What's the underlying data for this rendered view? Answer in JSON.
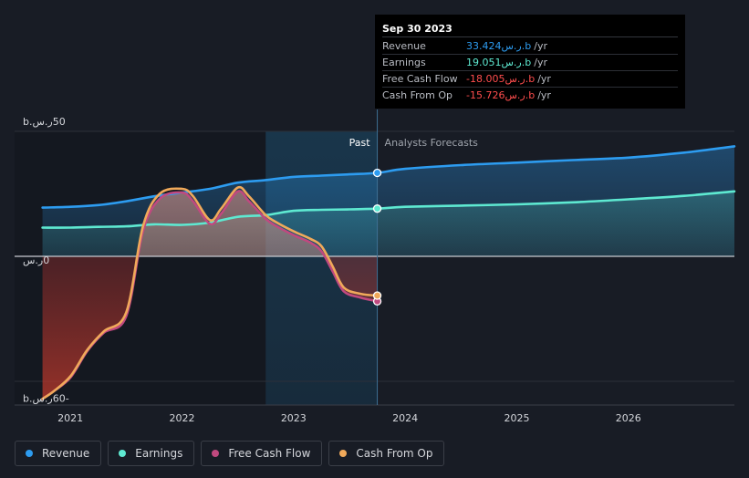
{
  "tooltip": {
    "date": "Sep 30 2023",
    "rows": [
      {
        "label": "Revenue",
        "value": "33.424ر.س.b",
        "unit": "/yr",
        "color": "#2d9cf0"
      },
      {
        "label": "Earnings",
        "value": "19.051ر.س.b",
        "unit": "/yr",
        "color": "#5ee9d1"
      },
      {
        "label": "Free Cash Flow",
        "value": "-18.005ر.س.b",
        "unit": "/yr",
        "color": "#ff4d4d"
      },
      {
        "label": "Cash From Op",
        "value": "-15.726ر.س.b",
        "unit": "/yr",
        "color": "#ff4d4d"
      }
    ]
  },
  "legend": [
    {
      "label": "Revenue",
      "color": "#2d9cf0"
    },
    {
      "label": "Earnings",
      "color": "#5ee9d1"
    },
    {
      "label": "Free Cash Flow",
      "color": "#c0497f"
    },
    {
      "label": "Cash From Op",
      "color": "#f0a95a"
    }
  ],
  "chart_data": {
    "type": "line",
    "title": "",
    "section_labels": {
      "past": "Past",
      "forecast": "Analysts Forecasts"
    },
    "y_tick_labels": [
      {
        "value": 50,
        "label": "50ر.س.b"
      },
      {
        "value": 0,
        "label": "0ر.س"
      },
      {
        "value": -60,
        "label": "-60ر.س.b"
      }
    ],
    "ylim": [
      -60,
      50
    ],
    "xlim": [
      2020.5,
      2026.95
    ],
    "x_ticks": [
      2021,
      2022,
      2023,
      2024,
      2025,
      2026
    ],
    "x_tick_labels": [
      "2021",
      "2022",
      "2023",
      "2024",
      "2025",
      "2026"
    ],
    "past_end": 2023.75,
    "highlight_start": 2022.75,
    "series": [
      {
        "name": "Revenue",
        "color": "#2d9cf0",
        "x": [
          2020.75,
          2021.0,
          2021.25,
          2021.5,
          2021.75,
          2022.0,
          2022.25,
          2022.5,
          2022.75,
          2023.0,
          2023.25,
          2023.5,
          2023.75,
          2024.0,
          2024.5,
          2025.0,
          2025.5,
          2026.0,
          2026.5,
          2026.95
        ],
        "y": [
          19.5,
          19.8,
          20.5,
          22.0,
          24.0,
          25.5,
          27.0,
          29.5,
          30.5,
          31.8,
          32.3,
          32.8,
          33.4,
          35.0,
          36.5,
          37.5,
          38.5,
          39.5,
          41.5,
          44.0
        ]
      },
      {
        "name": "Earnings",
        "color": "#5ee9d1",
        "x": [
          2020.75,
          2021.0,
          2021.25,
          2021.5,
          2021.75,
          2022.0,
          2022.25,
          2022.5,
          2022.75,
          2023.0,
          2023.25,
          2023.5,
          2023.75,
          2024.0,
          2024.5,
          2025.0,
          2025.5,
          2026.0,
          2026.5,
          2026.95
        ],
        "y": [
          11.5,
          11.5,
          11.8,
          12.0,
          12.8,
          12.6,
          13.5,
          15.8,
          16.5,
          18.2,
          18.6,
          18.8,
          19.1,
          19.8,
          20.3,
          20.8,
          21.6,
          22.8,
          24.2,
          26.0
        ]
      },
      {
        "name": "Free Cash Flow",
        "color": "#c0497f",
        "x": [
          2020.75,
          2020.85,
          2021.0,
          2021.15,
          2021.3,
          2021.5,
          2021.65,
          2021.8,
          2022.0,
          2022.1,
          2022.25,
          2022.35,
          2022.5,
          2022.6,
          2022.75,
          2022.85,
          2023.0,
          2023.15,
          2023.25,
          2023.35,
          2023.45,
          2023.6,
          2023.75
        ],
        "y": [
          -57.0,
          -54.0,
          -48.5,
          -38.0,
          -30.5,
          -24.0,
          10.0,
          23.0,
          25.5,
          22.0,
          13.0,
          17.0,
          26.0,
          22.0,
          15.0,
          12.0,
          8.5,
          5.5,
          2.0,
          -6.0,
          -14.0,
          -16.5,
          -18.0
        ]
      },
      {
        "name": "Cash From Op",
        "color": "#f0a95a",
        "x": [
          2020.75,
          2020.85,
          2021.0,
          2021.15,
          2021.3,
          2021.5,
          2021.65,
          2021.8,
          2022.0,
          2022.1,
          2022.25,
          2022.35,
          2022.5,
          2022.6,
          2022.75,
          2022.85,
          2023.0,
          2023.15,
          2023.25,
          2023.35,
          2023.45,
          2023.6,
          2023.75
        ],
        "y": [
          -57.0,
          -54.0,
          -48.0,
          -37.5,
          -30.0,
          -22.5,
          12.0,
          25.0,
          27.0,
          24.0,
          14.5,
          19.0,
          27.5,
          24.0,
          16.5,
          13.5,
          10.0,
          7.0,
          4.0,
          -4.0,
          -12.5,
          -15.0,
          -15.7
        ]
      }
    ]
  }
}
